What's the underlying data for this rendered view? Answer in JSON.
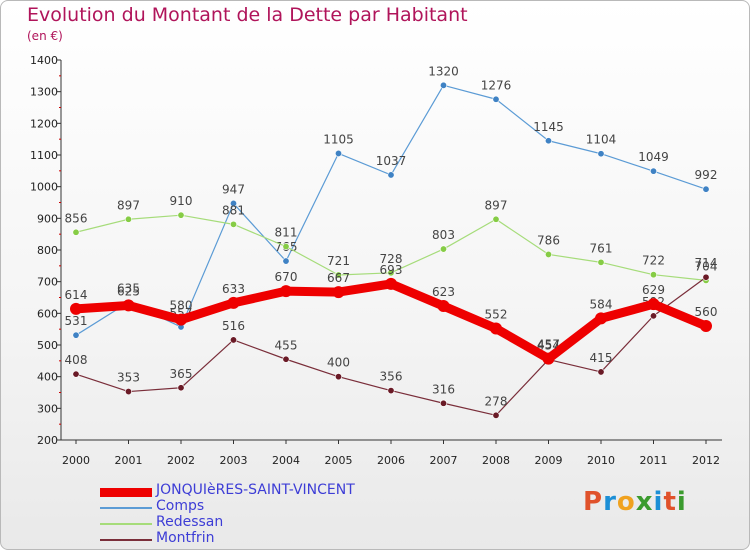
{
  "title": "Evolution du Montant de la Dette par Habitant",
  "unit_label": "(en €)",
  "brand": "Proxiti",
  "chart_data": {
    "type": "line",
    "title": "Evolution du Montant de la Dette par Habitant",
    "ylabel": "(en €)",
    "xlabel": "",
    "x": [
      "2000",
      "2001",
      "2002",
      "2003",
      "2004",
      "2005",
      "2006",
      "2007",
      "2008",
      "2009",
      "2010",
      "2011",
      "2012"
    ],
    "ylim": [
      200,
      1400
    ],
    "yticks": [
      200,
      300,
      400,
      500,
      600,
      700,
      800,
      900,
      1000,
      1100,
      1200,
      1300,
      1400
    ],
    "grid": false,
    "legend_position": "bottom-left",
    "series": [
      {
        "name": "Comps",
        "color": "#5b9bd5",
        "width": 1.2,
        "values": [
          531,
          635,
          557,
          947,
          765,
          1105,
          1037,
          1320,
          1276,
          1145,
          1104,
          1049,
          992
        ],
        "dot": "#3f82c4"
      },
      {
        "name": "Redessan",
        "color": "#a6dc7a",
        "width": 1.2,
        "values": [
          856,
          897,
          910,
          881,
          811,
          721,
          728,
          803,
          897,
          786,
          761,
          722,
          704
        ],
        "dot": "#86cc45"
      },
      {
        "name": "Montfrin",
        "color": "#7a2e3a",
        "width": 1.2,
        "values": [
          408,
          353,
          365,
          516,
          455,
          400,
          356,
          316,
          278,
          454,
          415,
          592,
          714
        ],
        "dot": "#6a1a26"
      },
      {
        "name": "JONQUIèRES-SAINT-VINCENT",
        "color": "#ee0000",
        "width": 9,
        "values": [
          614,
          625,
          580,
          633,
          670,
          667,
          693,
          623,
          552,
          457,
          584,
          629,
          560
        ],
        "dot": "#ee0000"
      }
    ]
  }
}
